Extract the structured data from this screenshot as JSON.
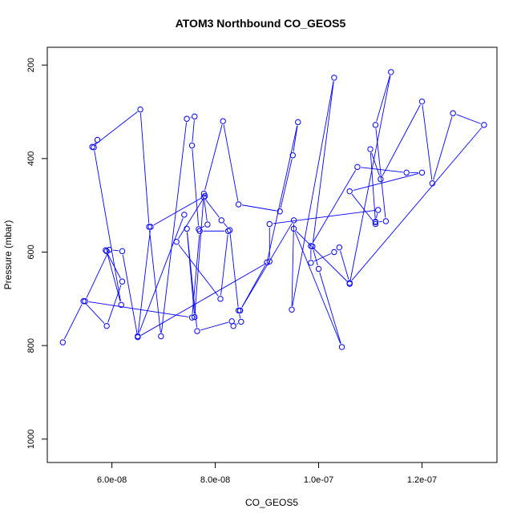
{
  "chart_data": {
    "type": "line",
    "title": "ATOM3 Northbound CO_GEOS5",
    "xlabel": "CO_GEOS5",
    "ylabel": "Pressure (mbar)",
    "xlim": [
      4.75e-08,
      1.345e-07
    ],
    "ylim": [
      1050,
      162
    ],
    "y_reversed": true,
    "x_ticks": [
      6e-08,
      8e-08,
      1e-07,
      1.2e-07
    ],
    "x_tick_labels": [
      "6.0e-08",
      "8.0e-08",
      "1.0e-07",
      "1.2e-07"
    ],
    "y_ticks": [
      200,
      400,
      600,
      800,
      1000
    ],
    "y_tick_labels": [
      "200",
      "400",
      "600",
      "800",
      "1000"
    ],
    "series_color": "#0000ff",
    "marker": "open-circle",
    "series": [
      {
        "x": [
          5.05e-08,
          5.45e-08,
          5.9e-08,
          6.2e-08,
          5.88e-08,
          5.9e-08,
          6.18e-08,
          5.65e-08,
          5.72e-08,
          5.62e-08,
          6.55e-08,
          6.72e-08,
          6.95e-08,
          7.45e-08,
          7.6e-08,
          7.55e-08,
          7.68e-08,
          7.85e-08,
          7.78e-08,
          8.12e-08,
          8.28e-08,
          8.45e-08,
          8.5e-08,
          8.35e-08,
          8.32e-08,
          7.65e-08,
          7.45e-08,
          7.6e-08,
          7.78e-08,
          8.15e-08,
          8.45e-08,
          9.25e-08,
          9.5e-08,
          9.6e-08,
          9e-08,
          8.48e-08,
          8.48e-08,
          9.52e-08,
          9.48e-08,
          1.03e-07,
          9.88e-08,
          1e-07,
          1.045e-07,
          9.52e-08,
          1.06e-07,
          1.14e-07,
          1.11e-07,
          1.13e-07,
          1.11e-07,
          1.1e-07,
          1.12e-07,
          1.2e-07,
          1.22e-07,
          1.26e-07,
          1.32e-07,
          1.06e-07,
          1.04e-07,
          1.03e-07,
          9.85e-08,
          9.85e-08,
          1.075e-07,
          1.17e-07,
          1.2e-07,
          1.06e-07,
          1.11e-07,
          1.11e-07,
          1.115e-07,
          9.05e-08,
          9.05e-08,
          6.5e-08,
          6.2e-08,
          5.95e-08,
          5.48e-08,
          7.55e-08,
          7.7e-08,
          8.25e-08,
          8.1e-08,
          7.25e-08,
          7.8e-08,
          6.75e-08,
          6.5e-08,
          7.4e-08
        ],
        "y": [
          793,
          705,
          758,
          663,
          596,
          598,
          713,
          376,
          360,
          375,
          295,
          546,
          780,
          315,
          310,
          372,
          551,
          541,
          483,
          532,
          553,
          725,
          749,
          758,
          748,
          769,
          550,
          739,
          475,
          320,
          498,
          513,
          393,
          322,
          622,
          725,
          725,
          532,
          723,
          227,
          588,
          636,
          803,
          550,
          668,
          215,
          328,
          534,
          536,
          380,
          444,
          278,
          453,
          303,
          328,
          666,
          590,
          600,
          623,
          587,
          418,
          430,
          430,
          470,
          540,
          535,
          510,
          540,
          620,
          782,
          598,
          595,
          705,
          740,
          555,
          555,
          700,
          578,
          480,
          546,
          780,
          520
        ]
      }
    ]
  }
}
